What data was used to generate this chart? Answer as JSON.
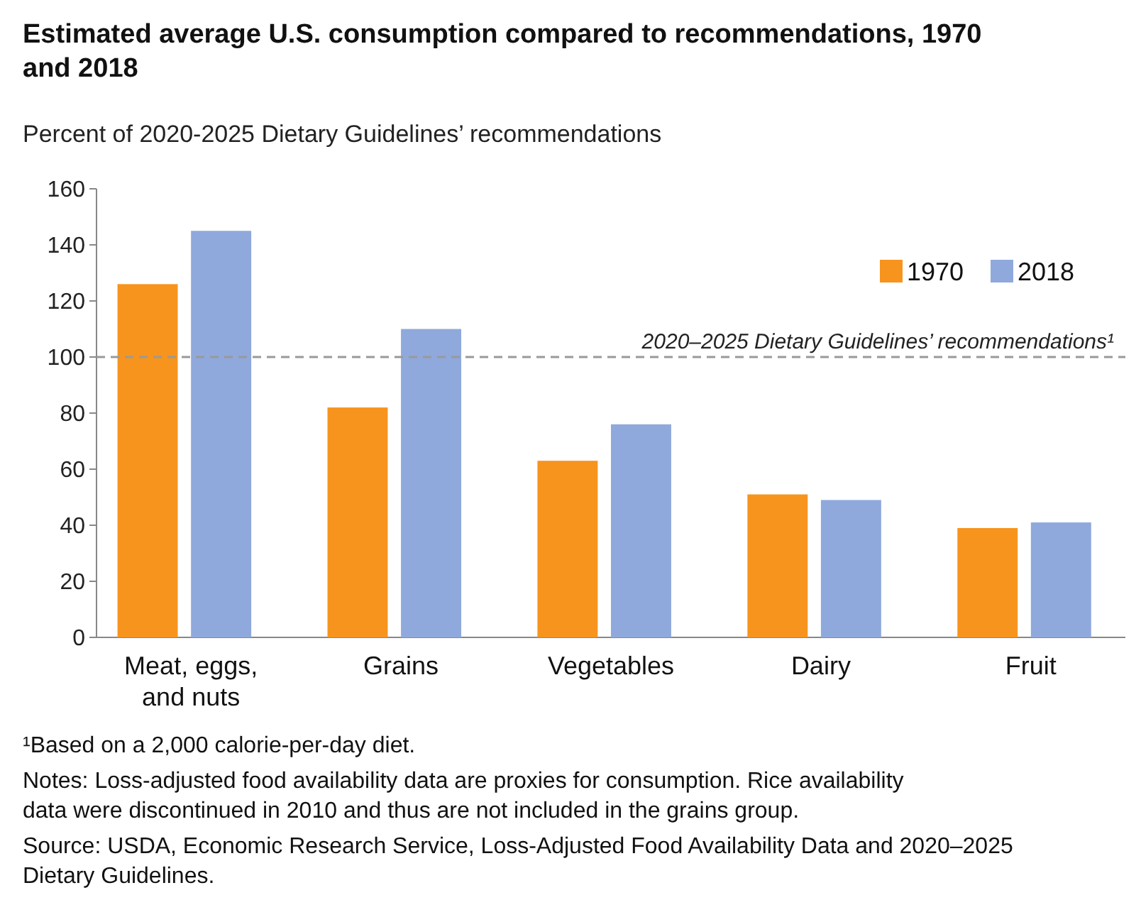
{
  "chart_data": {
    "type": "bar",
    "title": "Estimated average U.S. consumption compared to recommendations, 1970 and 2018",
    "subtitle": "Percent of 2020-2025 Dietary Guidelines’ recommendations",
    "categories": [
      "Meat, eggs, and nuts",
      "Grains",
      "Vegetables",
      "Dairy",
      "Fruit"
    ],
    "series": [
      {
        "name": "1970",
        "color": "#f7941d",
        "values": [
          126,
          82,
          63,
          51,
          39
        ]
      },
      {
        "name": "2018",
        "color": "#8fa9dc",
        "values": [
          145,
          110,
          76,
          49,
          41
        ]
      }
    ],
    "ylim": [
      0,
      160
    ],
    "yticks": [
      0,
      20,
      40,
      60,
      80,
      100,
      120,
      140,
      160
    ],
    "grid": false,
    "legend": "top right",
    "ref_lines": [
      {
        "axis": "y",
        "value": 100,
        "label": "2020–2025 Dietary Guidelines’ recommendations¹",
        "color": "#999999",
        "line_style": "dashed"
      }
    ],
    "annotations": [
      "¹Based on a 2,000 calorie-per-day diet.",
      "Notes: Loss-adjusted food availability data are proxies for consumption. Rice availability data were discontinued in 2010 and thus are not included in the grains group.",
      "Source: USDA, Economic Research Service, Loss-Adjusted Food Availability Data and 2020–2025 Dietary Guidelines."
    ]
  }
}
